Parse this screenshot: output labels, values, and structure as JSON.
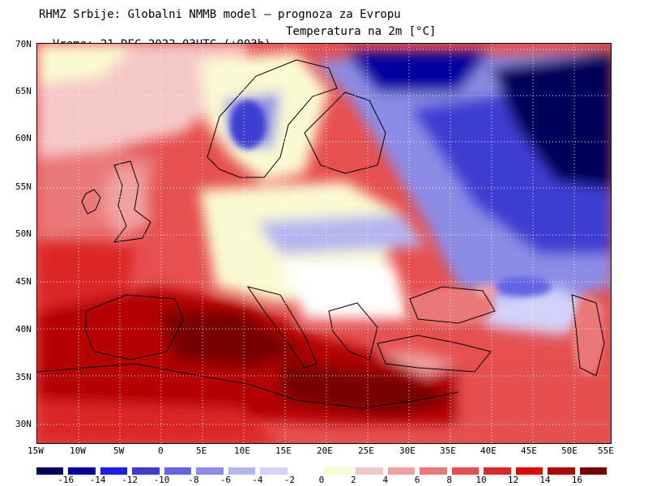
{
  "header": {
    "line1": "RHMZ Srbije: Globalni NMMB model — prognoza za Evropu",
    "line2": "Vreme: 21 DEC 2022 03UTC (+003h)",
    "parameter": "Temperatura na 2m [°C]"
  },
  "axes": {
    "lat_labels": [
      "70N",
      "65N",
      "60N",
      "55N",
      "50N",
      "45N",
      "40N",
      "35N",
      "30N"
    ],
    "lon_labels": [
      "15W",
      "10W",
      "5W",
      "0",
      "5E",
      "10E",
      "15E",
      "20E",
      "25E",
      "30E",
      "35E",
      "40E",
      "45E",
      "50E",
      "55E"
    ],
    "lon_range": [
      -15,
      55
    ],
    "lat_range": [
      28,
      70
    ]
  },
  "colorbar": {
    "colors": [
      "#00005a",
      "#0000a0",
      "#1e1eeb",
      "#3c3cd2",
      "#6464e6",
      "#8c8ce6",
      "#b4b4f0",
      "#d2d2fa",
      "#ffffff",
      "#fafad2",
      "#f5c8c8",
      "#f0a0a0",
      "#eb7878",
      "#e65050",
      "#dc2828",
      "#e60000",
      "#b40000",
      "#780000"
    ],
    "labels": [
      "-16",
      "-14",
      "-12",
      "-10",
      "-8",
      "-6",
      "-4",
      "-2",
      "0",
      "2",
      "4",
      "6",
      "8",
      "10",
      "12",
      "14",
      "16"
    ]
  },
  "map": {
    "graticule": "dotted",
    "ocean_color": "#e65050"
  }
}
